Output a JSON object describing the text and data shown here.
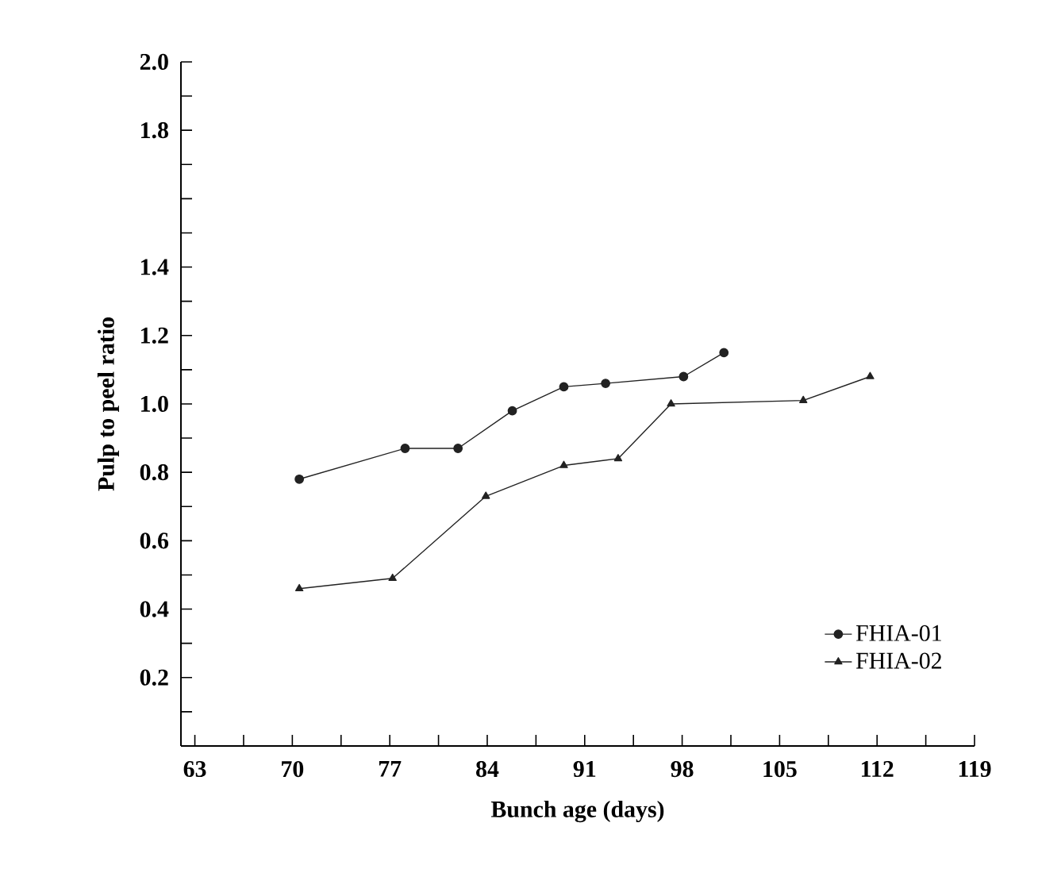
{
  "chart_data": {
    "type": "line",
    "xlabel": "Bunch age (days)",
    "ylabel": "Pulp to peel ratio",
    "xlim": [
      62,
      119
    ],
    "ylim": [
      0,
      2.0
    ],
    "xticks": [
      63,
      {
        "value": 66.5,
        "label": null
      },
      70,
      {
        "value": 73.5,
        "label": null
      },
      77,
      {
        "value": 80.5,
        "label": null
      },
      84,
      {
        "value": 87.5,
        "label": null
      },
      91,
      {
        "value": 94.5,
        "label": null
      },
      98,
      {
        "value": 101.5,
        "label": null
      },
      105,
      {
        "value": 108.5,
        "label": null
      },
      112,
      {
        "value": 115.5,
        "label": null
      },
      119
    ],
    "yticks": [
      {
        "value": 0.1,
        "label": null
      },
      0.2,
      {
        "value": 0.3,
        "label": null
      },
      0.4,
      {
        "value": 0.5,
        "label": null
      },
      0.6,
      {
        "value": 0.7,
        "label": null
      },
      0.8,
      {
        "value": 0.9,
        "label": null
      },
      {
        "value": 1,
        "label": "1.0"
      },
      {
        "value": 1.1,
        "label": null
      },
      1.2,
      {
        "value": 1.3,
        "label": null
      },
      1.4,
      {
        "value": 1.5,
        "label": null
      },
      {
        "value": 1.6,
        "label": null
      },
      {
        "value": 1.7,
        "label": null
      },
      1.8,
      {
        "value": 1.9,
        "label": null
      },
      {
        "value": 2,
        "label": "2.0"
      }
    ],
    "legend": "bottom right",
    "line_style": "solid",
    "series": [
      {
        "name": "FHIA-01",
        "color": "#222222",
        "marker": "circle",
        "x": [
          70.5,
          78.1,
          81.9,
          85.8,
          89.5,
          92.5,
          98.1,
          101
        ],
        "values": [
          0.78,
          0.87,
          0.87,
          0.98,
          1.05,
          1.06,
          1.08,
          1.15
        ]
      },
      {
        "name": "FHIA-02",
        "color": "#222222",
        "marker": "triangle",
        "x": [
          70.5,
          77.2,
          83.9,
          89.5,
          93.4,
          97.2,
          106.7,
          111.5
        ],
        "values": [
          0.46,
          0.49,
          0.73,
          0.82,
          0.84,
          1.0,
          1.01,
          1.08
        ]
      }
    ]
  }
}
